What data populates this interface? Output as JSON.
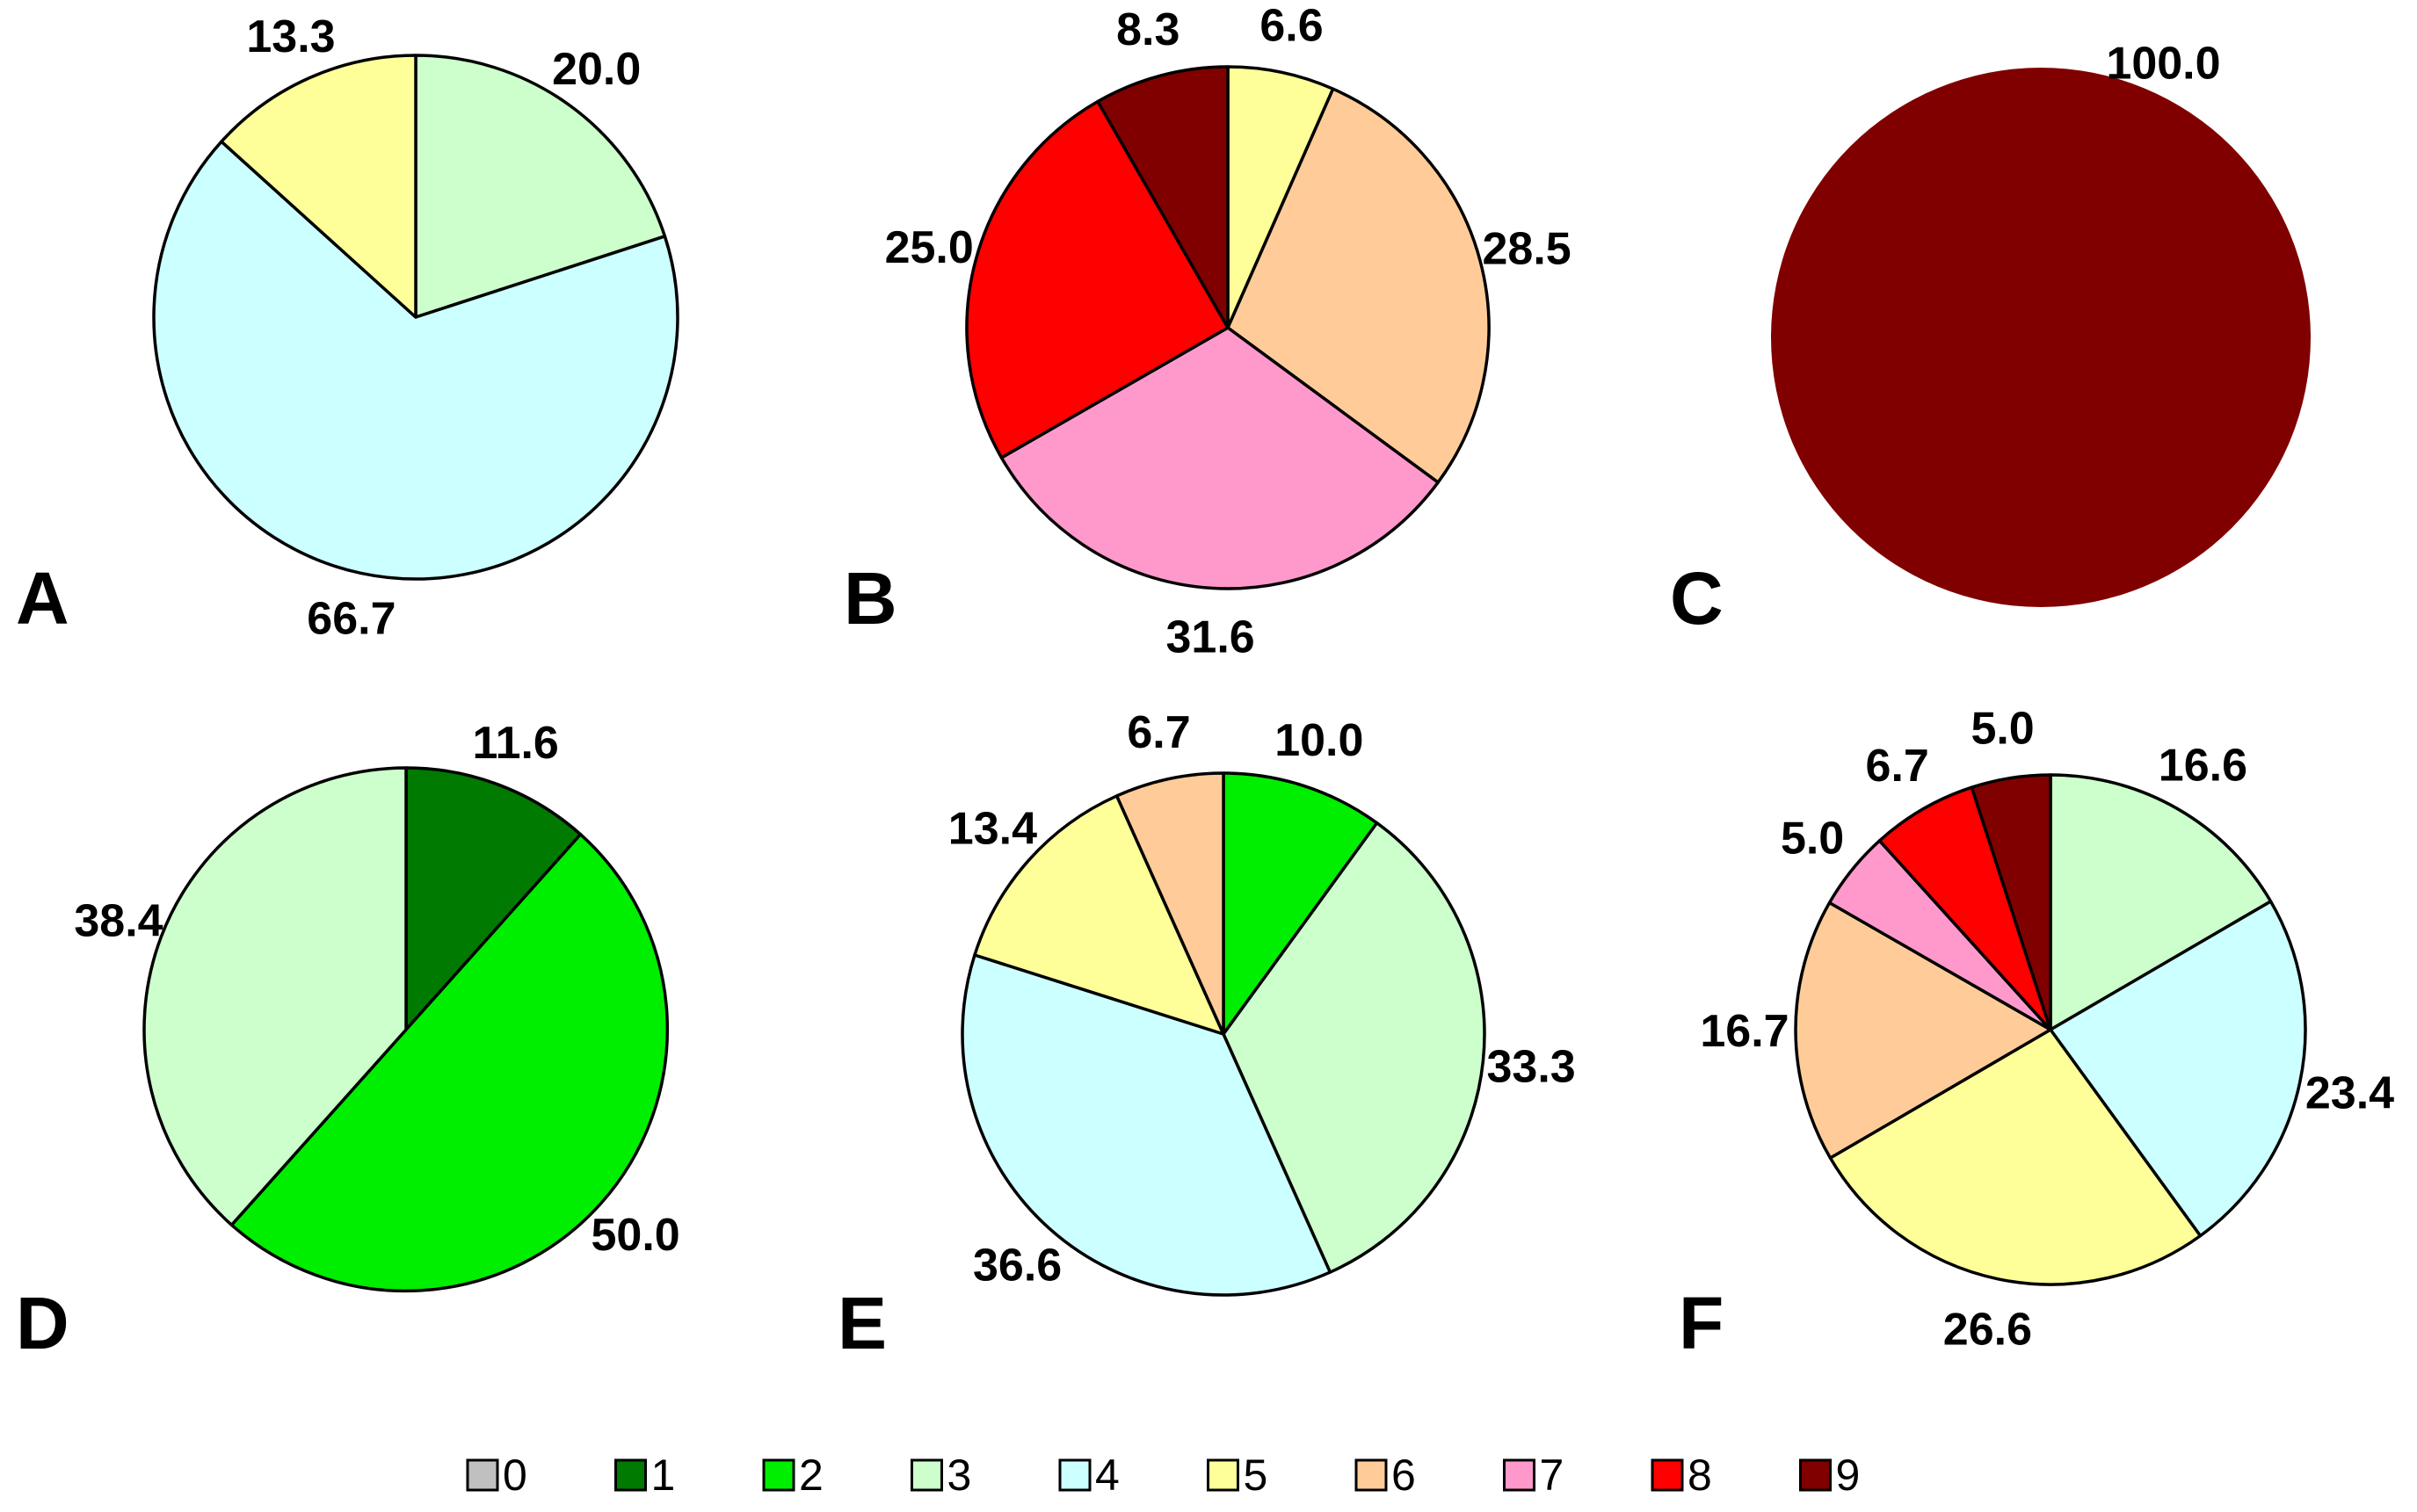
{
  "chart_data": [
    {
      "type": "pie",
      "panel": "A",
      "slices": [
        {
          "category": "3",
          "value": 20.0,
          "label": "20.0"
        },
        {
          "category": "4",
          "value": 66.7,
          "label": "66.7"
        },
        {
          "category": "5",
          "value": 13.3,
          "label": "13.3"
        }
      ]
    },
    {
      "type": "pie",
      "panel": "B",
      "slices": [
        {
          "category": "5",
          "value": 6.6,
          "label": "6.6"
        },
        {
          "category": "6",
          "value": 28.5,
          "label": "28.5"
        },
        {
          "category": "7",
          "value": 31.6,
          "label": "31.6"
        },
        {
          "category": "8",
          "value": 25.0,
          "label": "25.0"
        },
        {
          "category": "9",
          "value": 8.3,
          "label": "8.3"
        }
      ]
    },
    {
      "type": "pie",
      "panel": "C",
      "slices": [
        {
          "category": "9",
          "value": 100.0,
          "label": "100.0"
        }
      ]
    },
    {
      "type": "pie",
      "panel": "D",
      "slices": [
        {
          "category": "1",
          "value": 11.6,
          "label": "11.6"
        },
        {
          "category": "2",
          "value": 50.0,
          "label": "50.0"
        },
        {
          "category": "3",
          "value": 38.4,
          "label": "38.4"
        }
      ]
    },
    {
      "type": "pie",
      "panel": "E",
      "slices": [
        {
          "category": "2",
          "value": 10.0,
          "label": "10.0"
        },
        {
          "category": "3",
          "value": 33.3,
          "label": "33.3"
        },
        {
          "category": "4",
          "value": 36.6,
          "label": "36.6"
        },
        {
          "category": "5",
          "value": 13.4,
          "label": "13.4"
        },
        {
          "category": "6",
          "value": 6.7,
          "label": "6.7"
        }
      ]
    },
    {
      "type": "pie",
      "panel": "F",
      "slices": [
        {
          "category": "3",
          "value": 16.6,
          "label": "16.6"
        },
        {
          "category": "4",
          "value": 23.4,
          "label": "23.4"
        },
        {
          "category": "5",
          "value": 26.6,
          "label": "26.6"
        },
        {
          "category": "6",
          "value": 16.7,
          "label": "16.7"
        },
        {
          "category": "7",
          "value": 5.0,
          "label": "5.0"
        },
        {
          "category": "8",
          "value": 6.7,
          "label": "6.7"
        },
        {
          "category": "9",
          "value": 5.0,
          "label": "5.0"
        }
      ]
    }
  ],
  "legend": {
    "entries": [
      {
        "label": "0",
        "color": "#c0c0c0"
      },
      {
        "label": "1",
        "color": "#007a00"
      },
      {
        "label": "2",
        "color": "#00ee00"
      },
      {
        "label": "3",
        "color": "#ccffcc"
      },
      {
        "label": "4",
        "color": "#ccffff"
      },
      {
        "label": "5",
        "color": "#ffff99"
      },
      {
        "label": "6",
        "color": "#ffcc99"
      },
      {
        "label": "7",
        "color": "#ff99cc"
      },
      {
        "label": "8",
        "color": "#ff0000"
      },
      {
        "label": "9",
        "color": "#800000"
      }
    ]
  }
}
